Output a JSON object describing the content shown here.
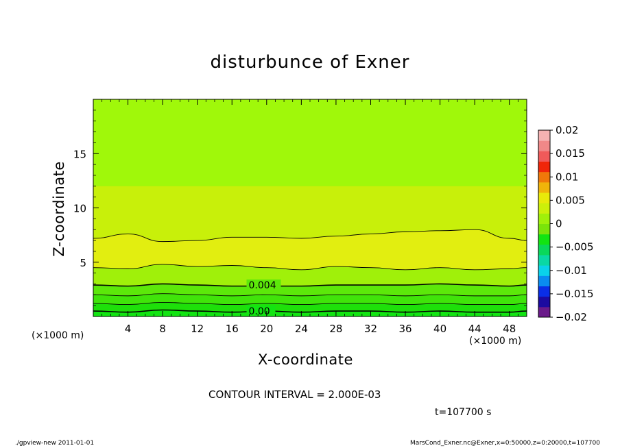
{
  "chart_data": {
    "type": "contour",
    "title": "disturbunce of Exner",
    "xlabel": "X-coordinate",
    "ylabel": "Z-coordinate",
    "x_unit_left": "(×1000 m)",
    "x_unit_right": "(×1000 m)",
    "xlim": [
      0,
      50
    ],
    "ylim": [
      0,
      20
    ],
    "x_ticks": [
      4,
      8,
      12,
      16,
      20,
      24,
      28,
      32,
      36,
      40,
      44,
      48
    ],
    "y_ticks": [
      5,
      10,
      15
    ],
    "contour_interval_text": "CONTOUR INTERVAL = 2.000E-03",
    "time_text": "t=107700 s",
    "contour_labels": [
      "0.004",
      "0.00"
    ],
    "colorbar": {
      "levels": [
        -0.02,
        -0.015,
        -0.01,
        -0.005,
        0,
        0.005,
        0.01,
        0.015,
        0.02
      ],
      "level_labels": [
        "0.02",
        "0.015",
        "0.01",
        "0.005",
        "0",
        "−0.005",
        "−0.01",
        "−0.015",
        "−0.02"
      ],
      "colors": [
        "#6a1a8a",
        "#1c0aa0",
        "#0a2ee6",
        "#0a8cf0",
        "#0ad2ea",
        "#0ad8a4",
        "#0ad85a",
        "#12e412",
        "#7ae40a",
        "#a0f00a",
        "#ccf00a",
        "#e8ea0a",
        "#f0b40a",
        "#f0780a",
        "#f0260a",
        "#f05a5a",
        "#f08888",
        "#f5b2b2"
      ]
    },
    "bands": [
      {
        "from_z": 0.0,
        "to_z": 0.5,
        "color": "#12e412"
      },
      {
        "from_z": 0.5,
        "to_z": 1.2,
        "color": "#1ee00a"
      },
      {
        "from_z": 1.2,
        "to_z": 2.0,
        "color": "#40e40a"
      },
      {
        "from_z": 2.0,
        "to_z": 2.9,
        "color": "#5ce80a"
      },
      {
        "from_z": 2.9,
        "to_z": 4.5,
        "color": "#a0f00a"
      },
      {
        "from_z": 4.5,
        "to_z": 7.0,
        "color": "#e2ee10"
      },
      {
        "from_z": 7.0,
        "to_z": 12.0,
        "color": "#c8f00a"
      },
      {
        "from_z": 12.0,
        "to_z": 20.0,
        "color": "#a0f80a"
      }
    ],
    "contours_z": [
      {
        "x": [
          0,
          4,
          8,
          12,
          16,
          20,
          24,
          28,
          32,
          36,
          40,
          44,
          48,
          50
        ],
        "z": [
          7.2,
          7.6,
          6.9,
          7.0,
          7.3,
          7.3,
          7.2,
          7.4,
          7.6,
          7.8,
          7.9,
          8.0,
          7.2,
          7.0
        ]
      },
      {
        "x": [
          0,
          4,
          8,
          12,
          16,
          20,
          24,
          28,
          32,
          36,
          40,
          44,
          48,
          50
        ],
        "z": [
          4.5,
          4.4,
          4.8,
          4.6,
          4.7,
          4.5,
          4.3,
          4.6,
          4.5,
          4.3,
          4.5,
          4.3,
          4.4,
          4.5
        ]
      },
      {
        "x": [
          0,
          4,
          8,
          12,
          16,
          20,
          24,
          28,
          32,
          36,
          40,
          44,
          48,
          50
        ],
        "z": [
          2.9,
          2.8,
          3.0,
          2.9,
          2.8,
          2.8,
          2.8,
          2.9,
          2.9,
          2.9,
          3.0,
          2.9,
          2.8,
          2.9
        ]
      },
      {
        "x": [
          0,
          4,
          8,
          12,
          16,
          20,
          24,
          28,
          32,
          36,
          40,
          44,
          48,
          50
        ],
        "z": [
          2.0,
          1.9,
          2.1,
          2.0,
          1.9,
          2.0,
          1.9,
          2.0,
          2.0,
          1.9,
          2.0,
          1.9,
          1.9,
          2.0
        ]
      },
      {
        "x": [
          0,
          4,
          8,
          12,
          16,
          20,
          24,
          28,
          32,
          36,
          40,
          44,
          48,
          50
        ],
        "z": [
          1.2,
          1.1,
          1.3,
          1.2,
          1.1,
          1.2,
          1.1,
          1.2,
          1.2,
          1.1,
          1.2,
          1.1,
          1.1,
          1.2
        ]
      },
      {
        "x": [
          0,
          4,
          8,
          12,
          16,
          20,
          24,
          28,
          32,
          36,
          40,
          44,
          48,
          50
        ],
        "z": [
          0.5,
          0.4,
          0.6,
          0.5,
          0.4,
          0.5,
          0.4,
          0.5,
          0.5,
          0.4,
          0.5,
          0.4,
          0.4,
          0.5
        ]
      }
    ]
  },
  "footer": {
    "left": "./gpview-new   2011-01-01",
    "right": "MarsCond_Exner.nc@Exner,x=0:50000,z=0:20000,t=107700"
  }
}
